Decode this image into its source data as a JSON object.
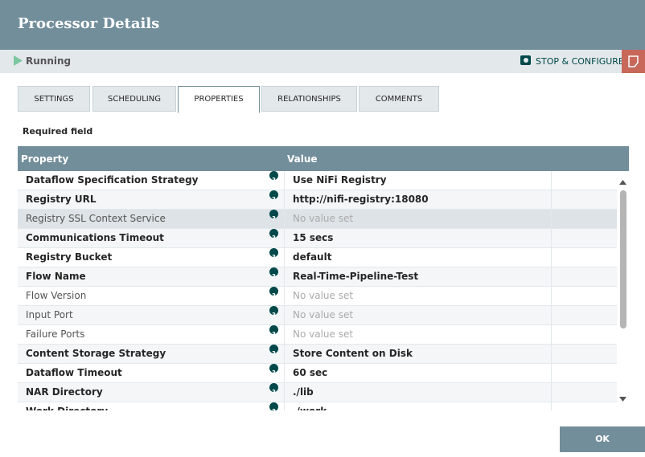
{
  "header": {
    "title": "Processor Details"
  },
  "status": {
    "state": "Running",
    "action": "STOP & CONFIGURE"
  },
  "tabs": [
    "SETTINGS",
    "SCHEDULING",
    "PROPERTIES",
    "RELATIONSHIPS",
    "COMMENTS"
  ],
  "active_tab": 2,
  "required_label": "Required field",
  "table": {
    "columns": [
      "Property",
      "Value"
    ],
    "selected_row": 2,
    "rows": [
      {
        "property": "Dataflow Specification Strategy",
        "value": "Use NiFi Registry",
        "required": true
      },
      {
        "property": "Registry URL",
        "value": "http://nifi-registry:18080",
        "required": true
      },
      {
        "property": "Registry SSL Context Service",
        "value": "No value set",
        "required": false
      },
      {
        "property": "Communications Timeout",
        "value": "15 secs",
        "required": true
      },
      {
        "property": "Registry Bucket",
        "value": "default",
        "required": true
      },
      {
        "property": "Flow Name",
        "value": "Real-Time-Pipeline-Test",
        "required": true
      },
      {
        "property": "Flow Version",
        "value": "No value set",
        "required": false
      },
      {
        "property": "Input Port",
        "value": "No value set",
        "required": false
      },
      {
        "property": "Failure Ports",
        "value": "No value set",
        "required": false
      },
      {
        "property": "Content Storage Strategy",
        "value": "Store Content on Disk",
        "required": true
      },
      {
        "property": "Dataflow Timeout",
        "value": "60 sec",
        "required": true
      },
      {
        "property": "NAR Directory",
        "value": "./lib",
        "required": true
      },
      {
        "property": "Work Directory",
        "value": "./work",
        "required": true
      }
    ]
  },
  "footer": {
    "ok": "OK"
  }
}
